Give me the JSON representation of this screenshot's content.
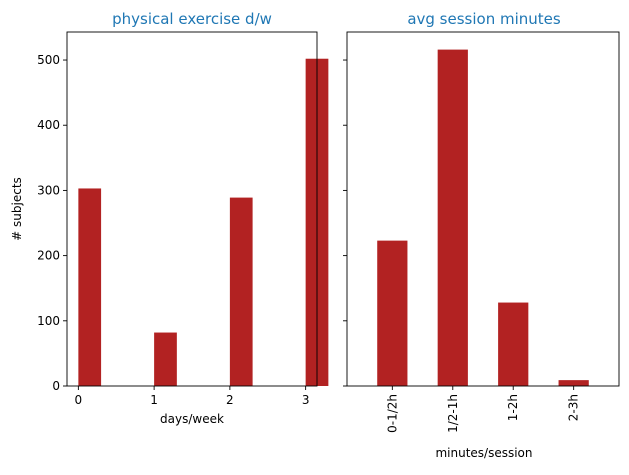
{
  "colors": {
    "bar": "#b22222",
    "title": "#1f77b4"
  },
  "chart_data": [
    {
      "type": "bar",
      "title": "physical exercise d/w",
      "xlabel": "days/week",
      "ylabel": "# subjects",
      "x": [
        0,
        1,
        2,
        3
      ],
      "values": [
        303,
        82,
        289,
        502
      ],
      "xticks": [
        "0",
        "1",
        "2",
        "3"
      ],
      "xlim": [
        -0.15,
        3.15
      ],
      "ylim": [
        0,
        543
      ],
      "yticks": [
        0,
        100,
        200,
        300,
        400,
        500
      ],
      "bar_width": 0.3
    },
    {
      "type": "bar",
      "title": "avg session minutes",
      "xlabel": "minutes/session",
      "ylabel": "",
      "categories": [
        "0-1/2h",
        "1/2-1h",
        "1-2h",
        "2-3h"
      ],
      "values": [
        223,
        516,
        128,
        9
      ],
      "ylim": [
        0,
        543
      ],
      "yticks": [
        0,
        100,
        200,
        300,
        400,
        500
      ]
    }
  ]
}
